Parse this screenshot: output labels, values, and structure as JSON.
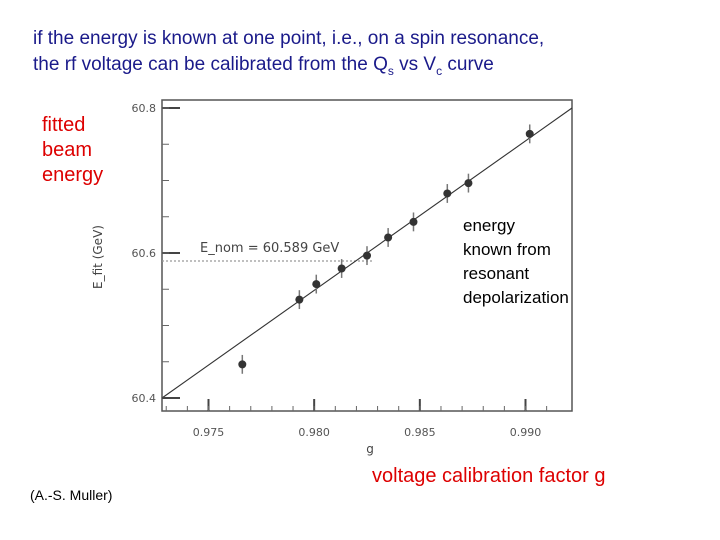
{
  "header": {
    "line1": "if the energy is known at one point, i.e., on a spin resonance,",
    "line2_pre": "the rf voltage can be calibrated from the Q",
    "line2_sub1": "s",
    "line2_mid": " vs V",
    "line2_sub2": "c",
    "line2_post": " curve"
  },
  "labels": {
    "fitted_line1": "fitted",
    "fitted_line2": "beam",
    "fitted_line3": "energy",
    "energy_note_line1": "energy",
    "energy_note_line2": "known from",
    "energy_note_line3": "resonant",
    "energy_note_line4": "depolarization",
    "voltage_label": "voltage calibration factor g",
    "credit": "(A.-S. Muller)"
  },
  "chart_data": {
    "type": "scatter",
    "xlabel": "g",
    "ylabel": "E_fit (GeV)",
    "xlim": [
      0.9728,
      0.9922
    ],
    "ylim": [
      60.4,
      60.8
    ],
    "xticks": [
      "0.975",
      "0.980",
      "0.985",
      "0.990"
    ],
    "yticks": [
      "60.4",
      "60.6",
      "60.8"
    ],
    "annotation": "E_nom = 60.589 GeV",
    "nominal_energy": 60.589,
    "fit_line": [
      [
        0.9728,
        60.4
      ],
      [
        0.9922,
        60.8
      ]
    ],
    "points": [
      {
        "x": 0.9766,
        "y": 60.4464,
        "err": 0.013
      },
      {
        "x": 0.9793,
        "y": 60.5357,
        "err": 0.013
      },
      {
        "x": 0.9801,
        "y": 60.5571,
        "err": 0.013
      },
      {
        "x": 0.9813,
        "y": 60.5786,
        "err": 0.013
      },
      {
        "x": 0.9825,
        "y": 60.5964,
        "err": 0.013
      },
      {
        "x": 0.9835,
        "y": 60.6214,
        "err": 0.013
      },
      {
        "x": 0.9847,
        "y": 60.6429,
        "err": 0.013
      },
      {
        "x": 0.9863,
        "y": 60.6821,
        "err": 0.013
      },
      {
        "x": 0.9873,
        "y": 60.6964,
        "err": 0.013
      },
      {
        "x": 0.9902,
        "y": 60.7643,
        "err": 0.013
      }
    ],
    "colors": {
      "points": "#333333",
      "line": "#333333",
      "dashed": "#999999"
    }
  }
}
